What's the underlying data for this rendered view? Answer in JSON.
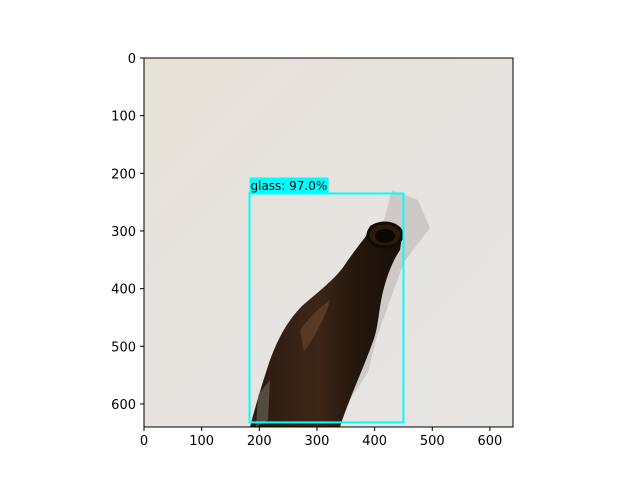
{
  "image_panel": {
    "x_ticks": [
      "0",
      "100",
      "200",
      "300",
      "400",
      "500",
      "600"
    ],
    "y_ticks": [
      "0",
      "100",
      "200",
      "300",
      "400",
      "500",
      "600"
    ],
    "x_range": [
      0,
      640
    ],
    "y_range": [
      640,
      0
    ],
    "background_color": "#e6e1da",
    "frame_color": "#000000"
  },
  "detections": [
    {
      "label": "glass: 97.0%",
      "box": {
        "x_min": 183,
        "y_min": 235,
        "x_max": 450,
        "y_max": 632
      },
      "color": "#00ffff"
    }
  ],
  "bottle": {
    "glass_color": "#3a2314",
    "highlight_color": "#5a3a22"
  }
}
